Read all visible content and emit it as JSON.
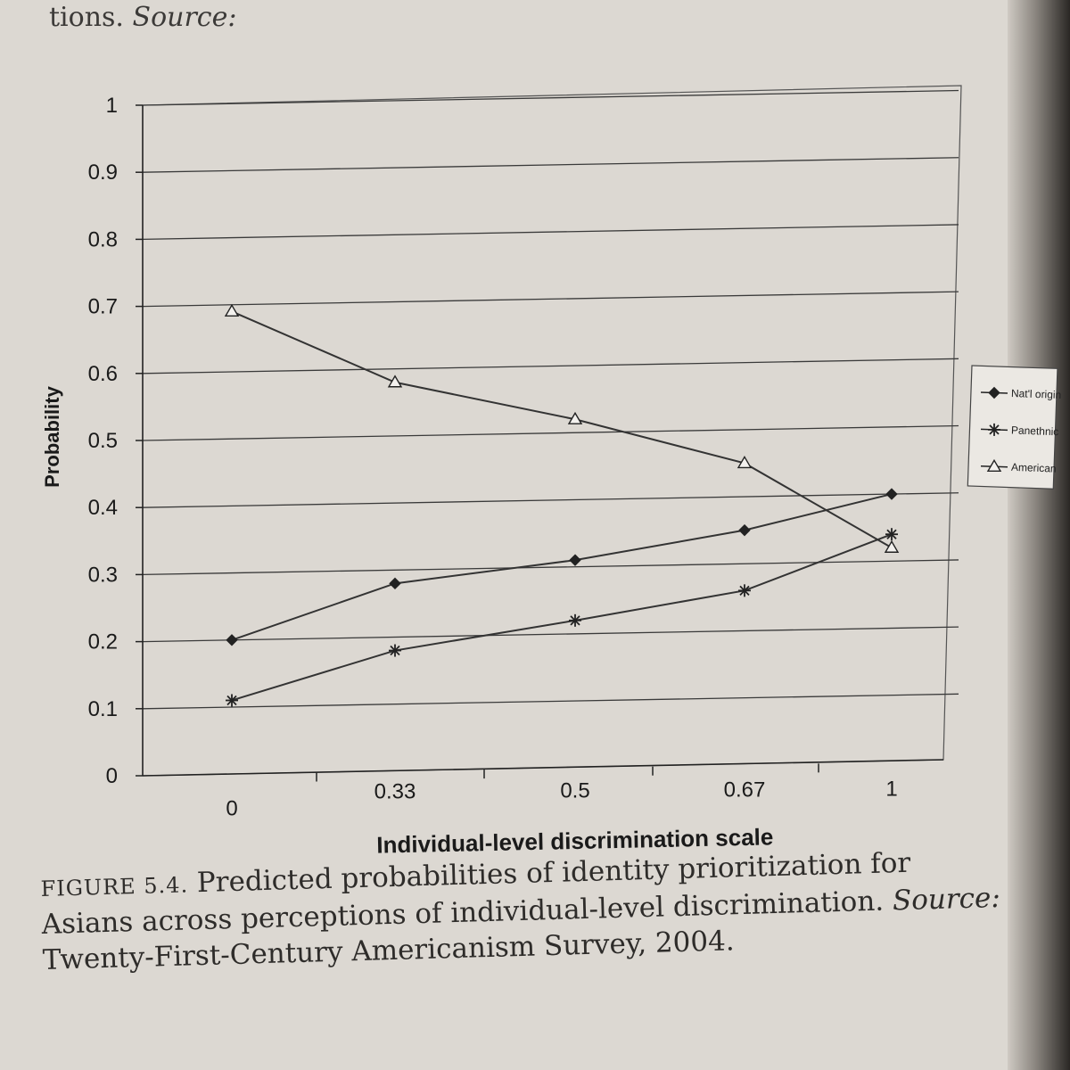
{
  "top_text": {
    "main": "tions.",
    "source": "Source:"
  },
  "chart_data": {
    "type": "line",
    "categories": [
      "0",
      "0.33",
      "0.5",
      "0.67",
      "1"
    ],
    "series": [
      {
        "name": "Nat'l origin",
        "marker": "diamond",
        "values": [
          0.2,
          0.28,
          0.31,
          0.35,
          0.4
        ]
      },
      {
        "name": "Panethnic",
        "marker": "asterisk",
        "values": [
          0.11,
          0.18,
          0.22,
          0.26,
          0.34
        ]
      },
      {
        "name": "American",
        "marker": "triangle",
        "values": [
          0.69,
          0.58,
          0.52,
          0.45,
          0.32
        ]
      }
    ],
    "title": "",
    "xlabel": "Individual-level discrimination scale",
    "ylabel": "Probability",
    "ylim": [
      0,
      1
    ],
    "yticks": [
      "0",
      "0.1",
      "0.2",
      "0.3",
      "0.4",
      "0.5",
      "0.6",
      "0.7",
      "0.8",
      "0.9",
      "1"
    ],
    "grid": true,
    "legend": "right",
    "colors": {
      "line": "#333333",
      "grid": "#3a3a3a"
    }
  },
  "caption": {
    "label": "FIGURE 5.4.",
    "text": "Predicted probabilities of identity prioritization for Asians across perceptions of individual-level discrimination.",
    "source_label": "Source:",
    "source": "Twenty-First-Century Americanism Survey, 2004."
  }
}
